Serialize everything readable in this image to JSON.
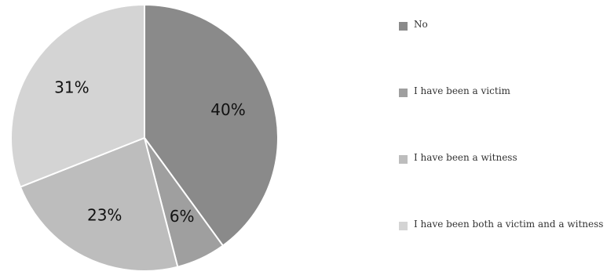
{
  "chart_data": {
    "type": "pie",
    "title": "",
    "categories": [
      "No",
      "I have been a victim",
      "I have been a witness",
      "I have been both a victim and a witness"
    ],
    "values": [
      40,
      6,
      23,
      31
    ],
    "labels": [
      "40%",
      "6%",
      "23%",
      "31%"
    ],
    "colors": [
      "#8a8a8a",
      "#9f9f9f",
      "#bdbdbd",
      "#d4d4d4"
    ],
    "legend_position": "right"
  }
}
